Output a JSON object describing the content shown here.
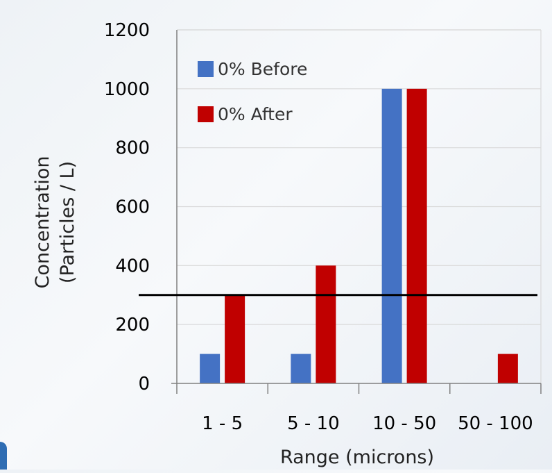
{
  "chart_data": {
    "type": "bar",
    "title": "",
    "xlabel": "Range (microns)",
    "ylabel_lines": [
      "Concentration",
      "(Particles / L)"
    ],
    "categories": [
      "1 - 5",
      "5 - 10",
      "10 - 50",
      "50 - 100"
    ],
    "series": [
      {
        "name": "0% Before",
        "color": "#4472c4",
        "values": [
          100,
          100,
          1000,
          0
        ]
      },
      {
        "name": "0% After",
        "color": "#c00000",
        "values": [
          300,
          400,
          1000,
          100
        ]
      }
    ],
    "ylim": [
      0,
      1200
    ],
    "yticks": [
      0,
      200,
      400,
      600,
      800,
      1000,
      1200
    ],
    "reference_line": {
      "value": 300,
      "color": "#000000"
    },
    "grid": true,
    "legend_position": "top-left"
  }
}
